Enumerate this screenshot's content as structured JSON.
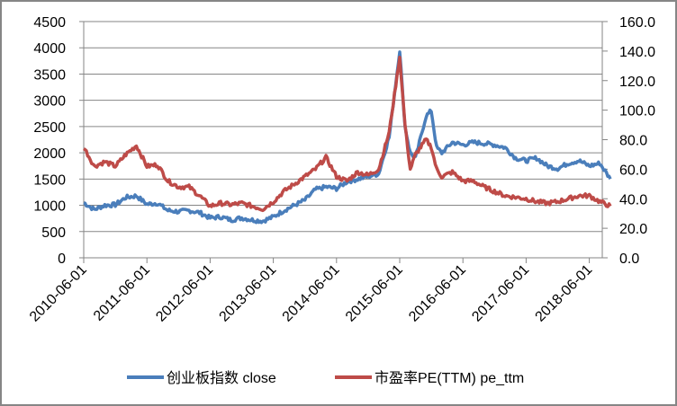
{
  "chart_data": {
    "type": "line",
    "title": "",
    "xlabel": "",
    "ylabel": "",
    "y2label": "",
    "grid": true,
    "legend_position": "bottom",
    "x_tick_labels": [
      "2010-06-01",
      "2011-06-01",
      "2012-06-01",
      "2013-06-01",
      "2014-06-01",
      "2015-06-01",
      "2016-06-01",
      "2017-06-01",
      "2018-06-01"
    ],
    "y_left": {
      "range": [
        0,
        4500
      ],
      "ticks": [
        "0",
        "500",
        "1000",
        "1500",
        "2000",
        "2500",
        "3000",
        "3500",
        "4000",
        "4500"
      ]
    },
    "y_right": {
      "range": [
        0,
        160
      ],
      "ticks": [
        "0.0",
        "20.0",
        "40.0",
        "60.0",
        "80.0",
        "100.0",
        "120.0",
        "140.0",
        "160.0"
      ]
    },
    "x": [
      "2010-06",
      "2010-08",
      "2010-10",
      "2010-12",
      "2011-02",
      "2011-04",
      "2011-06",
      "2011-08",
      "2011-10",
      "2011-12",
      "2012-02",
      "2012-04",
      "2012-06",
      "2012-08",
      "2012-10",
      "2012-12",
      "2013-02",
      "2013-04",
      "2013-06",
      "2013-08",
      "2013-10",
      "2013-12",
      "2014-02",
      "2014-04",
      "2014-06",
      "2014-08",
      "2014-10",
      "2014-12",
      "2015-02",
      "2015-04",
      "2015-06",
      "2015-07",
      "2015-08",
      "2015-09",
      "2015-11",
      "2015-12",
      "2016-01",
      "2016-02",
      "2016-04",
      "2016-06",
      "2016-08",
      "2016-10",
      "2016-12",
      "2017-02",
      "2017-04",
      "2017-06",
      "2017-08",
      "2017-10",
      "2017-12",
      "2018-02",
      "2018-04",
      "2018-06",
      "2018-08",
      "2018-10"
    ],
    "series": [
      {
        "name": "创业板指数 close",
        "axis": "left",
        "color": "#4a7ebb",
        "values": [
          1050,
          920,
          1000,
          1010,
          1150,
          1180,
          1020,
          1040,
          900,
          880,
          900,
          860,
          760,
          780,
          720,
          760,
          720,
          700,
          780,
          900,
          1000,
          1100,
          1300,
          1350,
          1320,
          1450,
          1500,
          1550,
          1600,
          2300,
          3950,
          2500,
          2000,
          1900,
          2700,
          2800,
          2100,
          2000,
          2200,
          2150,
          2200,
          2180,
          2150,
          2100,
          1900,
          1850,
          1900,
          1750,
          1700,
          1800,
          1850,
          1750,
          1800,
          1500
        ],
        "note": "Daily series; values approximated from pixel positions"
      },
      {
        "name": "市盈率PE(TTM) pe_ttm",
        "axis": "right",
        "color": "#be4b48",
        "values": [
          75,
          62,
          65,
          62,
          70,
          76,
          62,
          63,
          52,
          48,
          48,
          42,
          35,
          37,
          36,
          37,
          35,
          33,
          38,
          45,
          50,
          55,
          60,
          68,
          55,
          52,
          58,
          56,
          60,
          85,
          136,
          90,
          60,
          70,
          80,
          75,
          60,
          55,
          58,
          52,
          52,
          48,
          45,
          42,
          41,
          40,
          38,
          37,
          38,
          40,
          42,
          42,
          38,
          35
        ],
        "note": "Daily series; values approximated from pixel positions"
      }
    ]
  },
  "legend": {
    "items": [
      {
        "label": "创业板指数 close",
        "color": "#4a7ebb"
      },
      {
        "label": "市盈率PE(TTM) pe_ttm",
        "color": "#be4b48"
      }
    ]
  }
}
